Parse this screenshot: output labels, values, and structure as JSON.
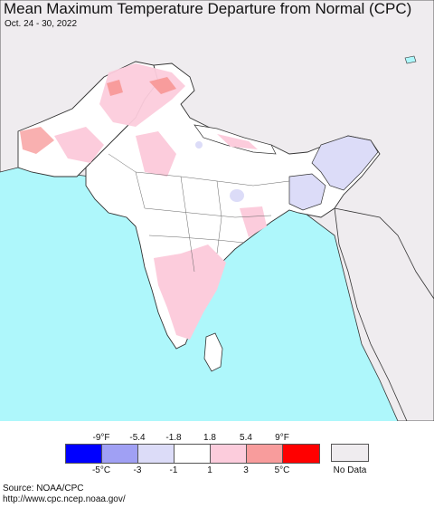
{
  "header": {
    "title": "Mean Maximum Temperature Departure from Normal (CPC)",
    "date_range": "Oct. 24 - 30, 2022"
  },
  "colors": {
    "ocean": "#aef7fb",
    "land_neighbor": "#efecef",
    "land_base": "#ffffff",
    "border": "#333333",
    "state_border": "#555555"
  },
  "legend": {
    "f_labels": [
      "-9°F",
      "-5.4",
      "-1.8",
      "1.8",
      "5.4",
      "9°F"
    ],
    "c_labels": [
      "-5°C",
      "-3",
      "-1",
      "1",
      "3",
      "5°C"
    ],
    "swatches": [
      "#0000ff",
      "#a0a0f4",
      "#dcdcf8",
      "#ffffff",
      "#fcccdc",
      "#f89c9c",
      "#ff0000"
    ],
    "no_data_label": "No Data",
    "no_data_color": "#efecef"
  },
  "source": {
    "line1": "Source: NOAA/CPC",
    "line2": "http://www.cpc.ncep.noaa.gov/"
  }
}
